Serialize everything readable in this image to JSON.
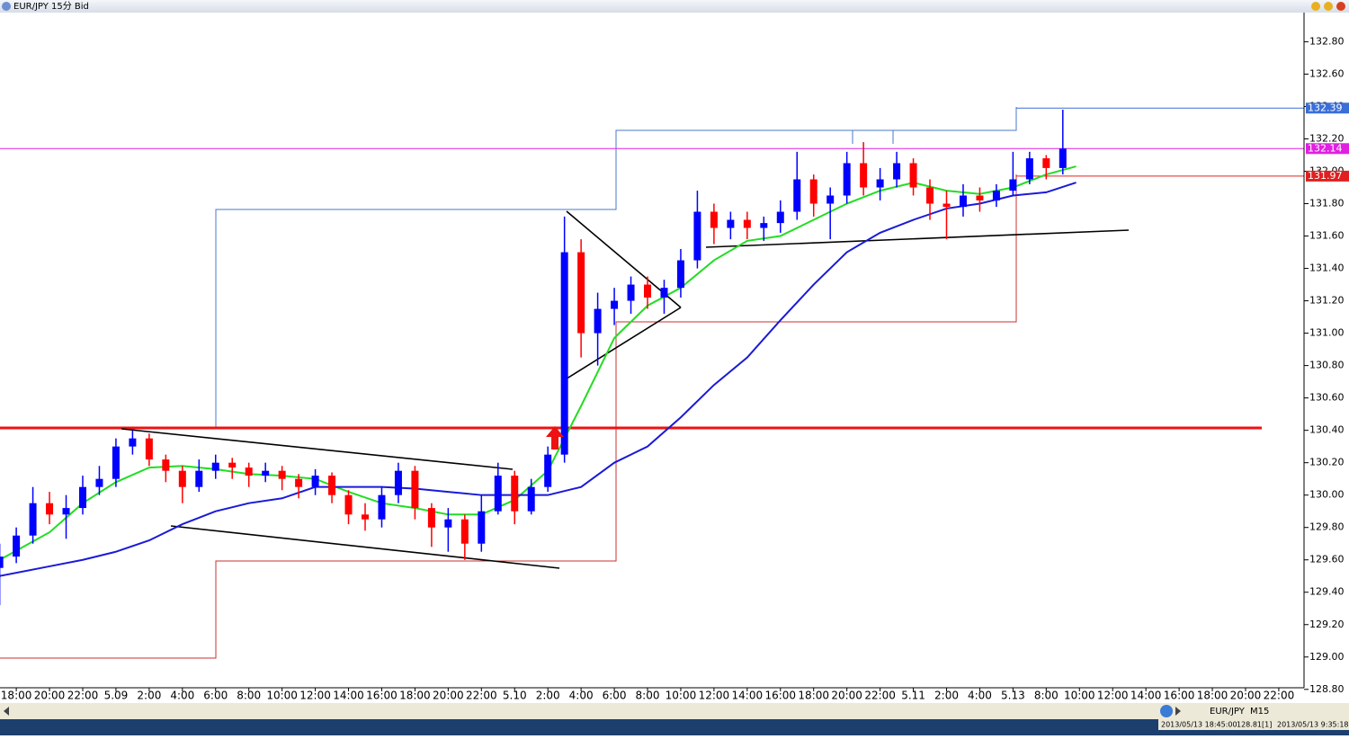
{
  "window": {
    "title": "EUR/JPY 15分 Bid"
  },
  "status": {
    "symbol": "EUR/JPY",
    "period": "M15",
    "time1": "2013/05/13 18:45:00",
    "price": "128.81[1]",
    "time2": "2013/05/13 9:35:18"
  },
  "chart_data": {
    "type": "candlestick",
    "x": [
      -0.5,
      0,
      0.5,
      1,
      1.5,
      2,
      2.5,
      3,
      3.5,
      4,
      4.5,
      5,
      5.5,
      6,
      6.5,
      7,
      7.5,
      8,
      8.5,
      9,
      9.5,
      10,
      10.5,
      11,
      11.5,
      12,
      12.5,
      13,
      13.5,
      14,
      14.5,
      15,
      15.5,
      16,
      16.5,
      17,
      17.5,
      18,
      18.5,
      19,
      19.5,
      20,
      20.5,
      21,
      21.5,
      22,
      22.5,
      23,
      23.5,
      24,
      24.5,
      25,
      25.5,
      26,
      26.5,
      27,
      27.5,
      28,
      28.5,
      29,
      29.5,
      30,
      30.5,
      31,
      31.5
    ],
    "open": [
      129.55,
      129.62,
      129.75,
      129.95,
      129.88,
      129.92,
      130.05,
      130.1,
      130.3,
      130.35,
      130.22,
      130.15,
      130.05,
      130.15,
      130.2,
      130.17,
      130.12,
      130.15,
      130.1,
      130.05,
      130.12,
      130.0,
      129.88,
      129.85,
      130.0,
      130.15,
      129.92,
      129.8,
      129.85,
      129.7,
      129.9,
      130.12,
      129.9,
      130.05,
      130.25,
      131.5,
      131.0,
      131.15,
      131.2,
      131.3,
      131.22,
      131.28,
      131.45,
      131.75,
      131.65,
      131.7,
      131.65,
      131.68,
      131.75,
      131.95,
      131.8,
      131.85,
      132.05,
      131.9,
      131.95,
      132.05,
      131.9,
      131.8,
      131.78,
      131.85,
      131.82,
      131.88,
      131.95,
      132.08,
      132.02
    ],
    "high": [
      129.7,
      129.8,
      130.05,
      130.02,
      130.0,
      130.12,
      130.18,
      130.35,
      130.4,
      130.38,
      130.25,
      130.18,
      130.22,
      130.25,
      130.23,
      130.2,
      130.2,
      130.18,
      130.13,
      130.16,
      130.14,
      130.03,
      129.95,
      130.05,
      130.2,
      130.18,
      129.95,
      129.92,
      129.88,
      130.0,
      130.2,
      130.15,
      130.1,
      130.3,
      131.72,
      131.58,
      131.25,
      131.28,
      131.35,
      131.35,
      131.33,
      131.52,
      131.88,
      131.8,
      131.75,
      131.75,
      131.72,
      131.82,
      132.12,
      131.98,
      131.9,
      132.12,
      132.18,
      132.02,
      132.12,
      132.08,
      131.95,
      131.88,
      131.92,
      131.9,
      131.92,
      132.12,
      132.12,
      132.1,
      132.38
    ],
    "low": [
      129.32,
      129.58,
      129.7,
      129.82,
      129.73,
      129.88,
      130.0,
      130.05,
      130.25,
      130.18,
      130.08,
      129.95,
      130.02,
      130.1,
      130.1,
      130.05,
      130.08,
      130.03,
      129.98,
      130.0,
      129.95,
      129.82,
      129.78,
      129.8,
      129.95,
      129.85,
      129.68,
      129.65,
      129.6,
      129.65,
      129.88,
      129.82,
      129.88,
      130.02,
      130.2,
      130.85,
      130.8,
      131.05,
      131.12,
      131.15,
      131.12,
      131.22,
      131.4,
      131.55,
      131.58,
      131.58,
      131.57,
      131.62,
      131.7,
      131.72,
      131.58,
      131.8,
      131.85,
      131.82,
      131.9,
      131.85,
      131.7,
      131.58,
      131.72,
      131.75,
      131.78,
      131.85,
      131.92,
      131.95,
      131.98
    ],
    "close": [
      129.62,
      129.75,
      129.95,
      129.88,
      129.92,
      130.05,
      130.1,
      130.3,
      130.35,
      130.22,
      130.15,
      130.05,
      130.15,
      130.2,
      130.17,
      130.12,
      130.15,
      130.1,
      130.05,
      130.12,
      130.0,
      129.88,
      129.85,
      130.0,
      130.15,
      129.92,
      129.8,
      129.85,
      129.7,
      129.9,
      130.12,
      129.9,
      130.05,
      130.25,
      131.5,
      131.0,
      131.15,
      131.2,
      131.3,
      131.22,
      131.28,
      131.45,
      131.75,
      131.65,
      131.7,
      131.65,
      131.68,
      131.75,
      131.95,
      131.8,
      131.85,
      132.05,
      131.9,
      131.95,
      132.05,
      131.9,
      131.8,
      131.78,
      131.85,
      131.82,
      131.88,
      131.95,
      132.08,
      132.02,
      132.14
    ],
    "up_color": "#0000ff",
    "down_color": "#ff0000",
    "lines": [
      {
        "color": "#22dd22",
        "x": [
          -0.5,
          1,
          2,
          3,
          4,
          5,
          6,
          7,
          8,
          9,
          10,
          11,
          12,
          13,
          14,
          15,
          16,
          17,
          18,
          19,
          20,
          21,
          22,
          23,
          24,
          25,
          26,
          27,
          28,
          29,
          30,
          31,
          31.9
        ],
        "values": [
          129.6,
          129.77,
          129.95,
          130.08,
          130.17,
          130.18,
          130.16,
          130.13,
          130.12,
          130.1,
          130.02,
          129.95,
          129.92,
          129.88,
          129.88,
          129.97,
          130.15,
          130.55,
          130.97,
          131.17,
          131.28,
          131.45,
          131.57,
          131.6,
          131.7,
          131.8,
          131.88,
          131.93,
          131.88,
          131.86,
          131.9,
          131.98,
          132.03
        ]
      },
      {
        "color": "#1a1ad8",
        "x": [
          -0.5,
          1,
          2,
          3,
          4,
          5,
          6,
          7,
          8,
          9,
          10,
          11,
          12,
          13,
          14,
          15,
          16,
          17,
          18,
          19,
          20,
          21,
          22,
          23,
          24,
          25,
          26,
          27,
          28,
          29,
          30,
          31,
          31.9
        ],
        "values": [
          129.5,
          129.56,
          129.6,
          129.65,
          129.72,
          129.82,
          129.9,
          129.95,
          129.98,
          130.05,
          130.05,
          130.05,
          130.04,
          130.02,
          130.0,
          130.0,
          130.0,
          130.05,
          130.2,
          130.3,
          130.48,
          130.68,
          130.85,
          131.08,
          131.3,
          131.5,
          131.62,
          131.7,
          131.77,
          131.8,
          131.85,
          131.87,
          131.93
        ]
      }
    ],
    "price_markers": [
      {
        "value": 132.39,
        "label": "132.39",
        "color": "#3a6fd8"
      },
      {
        "value": 132.14,
        "label": "132.14",
        "color": "#e020e0"
      },
      {
        "value": 131.97,
        "label": "131.97",
        "color": "#e02020"
      }
    ],
    "xlim": [
      -0.49,
      38.76
    ],
    "ylim": [
      128.81,
      132.98
    ],
    "yticks": [
      {
        "value": 128.8,
        "label": "128.80"
      },
      {
        "value": 129,
        "label": "129.00"
      },
      {
        "value": 129.2,
        "label": "129.20"
      },
      {
        "value": 129.4,
        "label": "129.40"
      },
      {
        "value": 129.6,
        "label": "129.60"
      },
      {
        "value": 129.8,
        "label": "129.80"
      },
      {
        "value": 130,
        "label": "130.00"
      },
      {
        "value": 130.2,
        "label": "130.20"
      },
      {
        "value": 130.4,
        "label": "130.40"
      },
      {
        "value": 130.6,
        "label": "130.60"
      },
      {
        "value": 130.8,
        "label": "130.80"
      },
      {
        "value": 131,
        "label": "131.00"
      },
      {
        "value": 131.2,
        "label": "131.20"
      },
      {
        "value": 131.4,
        "label": "131.40"
      },
      {
        "value": 131.6,
        "label": "131.60"
      },
      {
        "value": 131.8,
        "label": "131.80"
      },
      {
        "value": 132,
        "label": "132.00"
      },
      {
        "value": 132.2,
        "label": "132.20"
      },
      {
        "value": 132.4,
        "label": "132.40"
      },
      {
        "value": 132.6,
        "label": "132.60"
      },
      {
        "value": 132.8,
        "label": "132.80"
      }
    ],
    "xticks": [
      {
        "value": 0,
        "label": "18:00"
      },
      {
        "value": 1,
        "label": "20:00"
      },
      {
        "value": 2,
        "label": "22:00"
      },
      {
        "value": 3,
        "label": "5.09"
      },
      {
        "value": 4,
        "label": "2:00"
      },
      {
        "value": 5,
        "label": "4:00"
      },
      {
        "value": 6,
        "label": "6:00"
      },
      {
        "value": 7,
        "label": "8:00"
      },
      {
        "value": 8,
        "label": "10:00"
      },
      {
        "value": 9,
        "label": "12:00"
      },
      {
        "value": 10,
        "label": "14:00"
      },
      {
        "value": 11,
        "label": "16:00"
      },
      {
        "value": 12,
        "label": "18:00"
      },
      {
        "value": 13,
        "label": "20:00"
      },
      {
        "value": 14,
        "label": "22:00"
      },
      {
        "value": 15,
        "label": "5.10"
      },
      {
        "value": 16,
        "label": "2:00"
      },
      {
        "value": 17,
        "label": "4:00"
      },
      {
        "value": 18,
        "label": "6:00"
      },
      {
        "value": 19,
        "label": "8:00"
      },
      {
        "value": 20,
        "label": "10:00"
      },
      {
        "value": 21,
        "label": "12:00"
      },
      {
        "value": 22,
        "label": "14:00"
      },
      {
        "value": 23,
        "label": "16:00"
      },
      {
        "value": 24,
        "label": "18:00"
      },
      {
        "value": 25,
        "label": "20:00"
      },
      {
        "value": 26,
        "label": "22:00"
      },
      {
        "value": 27,
        "label": "5.11"
      },
      {
        "value": 28,
        "label": "2:00"
      },
      {
        "value": 29,
        "label": "4:00"
      },
      {
        "value": 30,
        "label": "5.13"
      },
      {
        "value": 31,
        "label": "8:00"
      },
      {
        "value": 32,
        "label": "10:00"
      },
      {
        "value": 33,
        "label": "12:00"
      },
      {
        "value": 34,
        "label": "14:00"
      },
      {
        "value": 35,
        "label": "16:00"
      },
      {
        "value": 36,
        "label": "18:00"
      },
      {
        "value": 37,
        "label": "20:00"
      },
      {
        "value": 38,
        "label": "22:00"
      }
    ]
  }
}
